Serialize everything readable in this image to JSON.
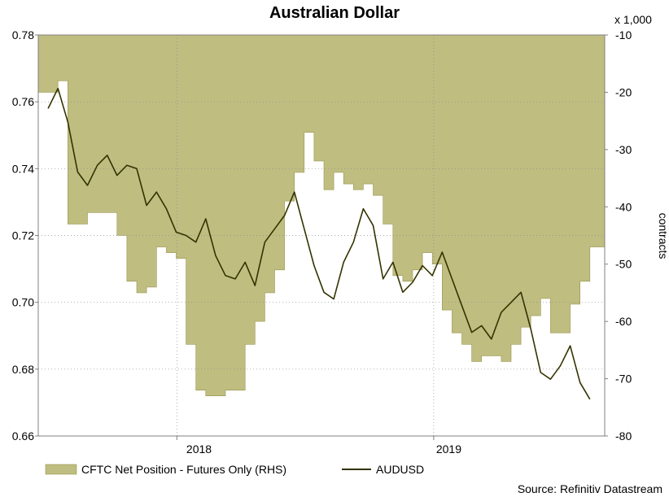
{
  "chart_data": {
    "type": "line",
    "title": "Australian Dollar",
    "x_tick_labels": [
      "2018",
      "2019"
    ],
    "y_left": {
      "ylim": [
        0.66,
        0.78
      ],
      "ticks": [
        "0.78",
        "0.76",
        "0.74",
        "0.72",
        "0.70",
        "0.68",
        "0.66"
      ]
    },
    "y_right": {
      "multiplier_label": "x 1,000",
      "label": "contracts",
      "ylim": [
        -80,
        -10
      ],
      "ticks": [
        "-10",
        "-20",
        "-30",
        "-40",
        "-50",
        "-60",
        "-70",
        "-80"
      ]
    },
    "grid": true,
    "legend_placement": "bottom-left",
    "source": "Source: Refinitiv Datastream",
    "colors": {
      "area_fill": "#bfbd80",
      "area_edge": "#9a9650",
      "line": "#333300",
      "grid": "#8c8c8c"
    },
    "series": [
      {
        "name": "CFTC Net Position - Futures Only (RHS)",
        "axis": "right",
        "kind": "area",
        "x": [
          "2017-07-01",
          "2017-07-15",
          "2017-07-29",
          "2017-08-12",
          "2017-08-26",
          "2017-09-09",
          "2017-09-23",
          "2017-10-07",
          "2017-10-21",
          "2017-11-04",
          "2017-11-18",
          "2017-12-02",
          "2017-12-16",
          "2017-12-30",
          "2018-01-13",
          "2018-01-27",
          "2018-02-10",
          "2018-02-24",
          "2018-03-10",
          "2018-03-24",
          "2018-04-07",
          "2018-04-21",
          "2018-05-05",
          "2018-05-19",
          "2018-06-02",
          "2018-06-16",
          "2018-06-30",
          "2018-07-14",
          "2018-07-28",
          "2018-08-11",
          "2018-08-25",
          "2018-09-08",
          "2018-09-22",
          "2018-10-06",
          "2018-10-20",
          "2018-11-03",
          "2018-11-17",
          "2018-12-01",
          "2018-12-15",
          "2018-12-29",
          "2019-01-12",
          "2019-01-26",
          "2019-02-09",
          "2019-02-23",
          "2019-03-09",
          "2019-03-23",
          "2019-04-06",
          "2019-04-20",
          "2019-05-04",
          "2019-05-18",
          "2019-06-01",
          "2019-06-15",
          "2019-06-29",
          "2019-07-13",
          "2019-07-27",
          "2019-08-10"
        ],
        "values": [
          -20,
          -18,
          -43,
          -43,
          -41,
          -41,
          -41,
          -45,
          -53,
          -55,
          -54,
          -47,
          -48,
          -49,
          -64,
          -72,
          -73,
          -73,
          -72,
          -72,
          -64,
          -60,
          -55,
          -51,
          -39,
          -34,
          -27,
          -32,
          -37,
          -34,
          -36,
          -37,
          -36,
          -38,
          -43,
          -52,
          -53,
          -51,
          -48,
          -50,
          -58,
          -62,
          -64,
          -67,
          -66,
          -66,
          -67,
          -64,
          -61,
          -59,
          -56,
          -62,
          -62,
          -57,
          -53,
          -47
        ],
        "unit": "thousand contracts"
      },
      {
        "name": "AUDUSD",
        "axis": "left",
        "kind": "line",
        "x": [
          "2017-07-01",
          "2017-07-15",
          "2017-07-29",
          "2017-08-12",
          "2017-08-26",
          "2017-09-09",
          "2017-09-23",
          "2017-10-07",
          "2017-10-21",
          "2017-11-04",
          "2017-11-18",
          "2017-12-02",
          "2017-12-16",
          "2017-12-30",
          "2018-01-13",
          "2018-01-27",
          "2018-02-10",
          "2018-02-24",
          "2018-03-10",
          "2018-03-24",
          "2018-04-07",
          "2018-04-21",
          "2018-05-05",
          "2018-05-19",
          "2018-06-02",
          "2018-06-16",
          "2018-06-30",
          "2018-07-14",
          "2018-07-28",
          "2018-08-11",
          "2018-08-25",
          "2018-09-08",
          "2018-09-22",
          "2018-10-06",
          "2018-10-20",
          "2018-11-03",
          "2018-11-17",
          "2018-12-01",
          "2018-12-15",
          "2018-12-29",
          "2019-01-12",
          "2019-01-26",
          "2019-02-09",
          "2019-02-23",
          "2019-03-09",
          "2019-03-23",
          "2019-04-06",
          "2019-04-20",
          "2019-05-04",
          "2019-05-18",
          "2019-06-01",
          "2019-06-15",
          "2019-06-29",
          "2019-07-13",
          "2019-07-27",
          "2019-08-10"
        ],
        "values": [
          0.758,
          0.764,
          0.754,
          0.739,
          0.735,
          0.741,
          0.744,
          0.738,
          0.741,
          0.74,
          0.729,
          0.733,
          0.728,
          0.721,
          0.72,
          0.718,
          0.725,
          0.714,
          0.708,
          0.707,
          0.712,
          0.705,
          0.718,
          0.722,
          0.726,
          0.733,
          0.722,
          0.711,
          0.703,
          0.701,
          0.712,
          0.718,
          0.728,
          0.723,
          0.707,
          0.712,
          0.703,
          0.706,
          0.711,
          0.708,
          0.715,
          0.707,
          0.699,
          0.691,
          0.693,
          0.689,
          0.697,
          0.7,
          0.703,
          0.692,
          0.679,
          0.677,
          0.681,
          0.687,
          0.676,
          0.671
        ]
      }
    ]
  }
}
